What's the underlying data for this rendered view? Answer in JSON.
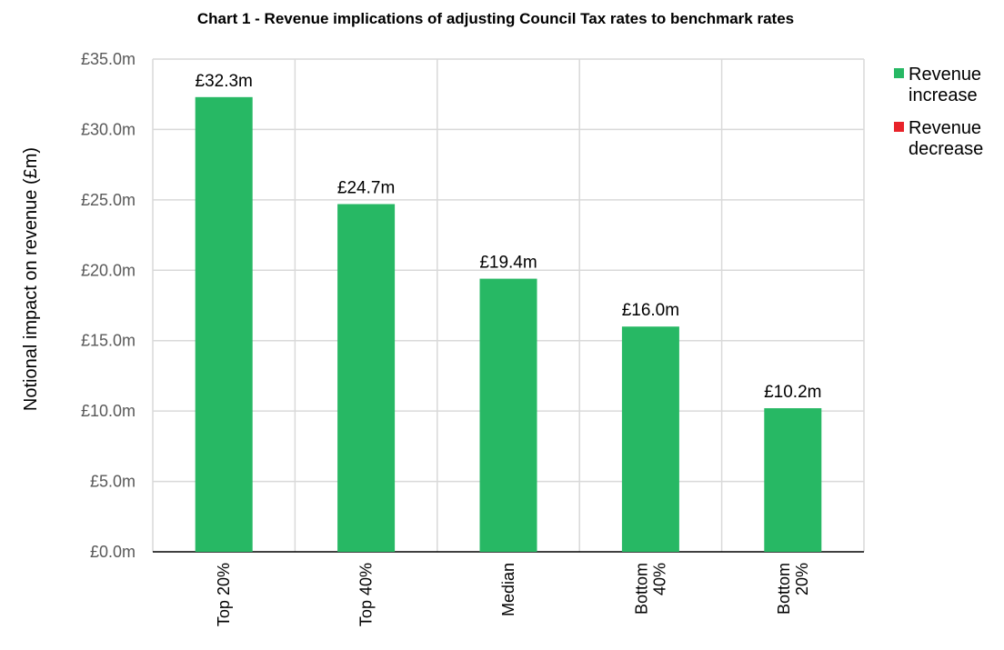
{
  "chart_data": {
    "type": "bar",
    "title": "Chart 1 - Revenue implications of adjusting Council Tax rates to benchmark rates",
    "ylabel": "Notional impact on revenue (£m)",
    "xlabel": "",
    "categories": [
      [
        "Top 20%"
      ],
      [
        "Top 40%"
      ],
      [
        "Median"
      ],
      [
        "Bottom",
        "40%"
      ],
      [
        "Bottom",
        "20%"
      ]
    ],
    "values": [
      32.3,
      24.7,
      19.4,
      16.0,
      10.2
    ],
    "data_labels": [
      "£32.3m",
      "£24.7m",
      "£19.4m",
      "£16.0m",
      "£10.2m"
    ],
    "ylim": [
      0,
      35
    ],
    "yticks": [
      0,
      5,
      10,
      15,
      20,
      25,
      30,
      35
    ],
    "ytick_labels": [
      "£0.0m",
      "£5.0m",
      "£10.0m",
      "£15.0m",
      "£20.0m",
      "£25.0m",
      "£30.0m",
      "£35.0m"
    ],
    "grid": true,
    "legend_position": "top-right",
    "legend": [
      {
        "lines": [
          "Revenue",
          "increase"
        ],
        "color": "#27b864"
      },
      {
        "lines": [
          "Revenue",
          "decrease"
        ],
        "color": "#e8232a"
      }
    ],
    "bar_color": "#27b864",
    "grid_color": "#d9d9d9"
  }
}
